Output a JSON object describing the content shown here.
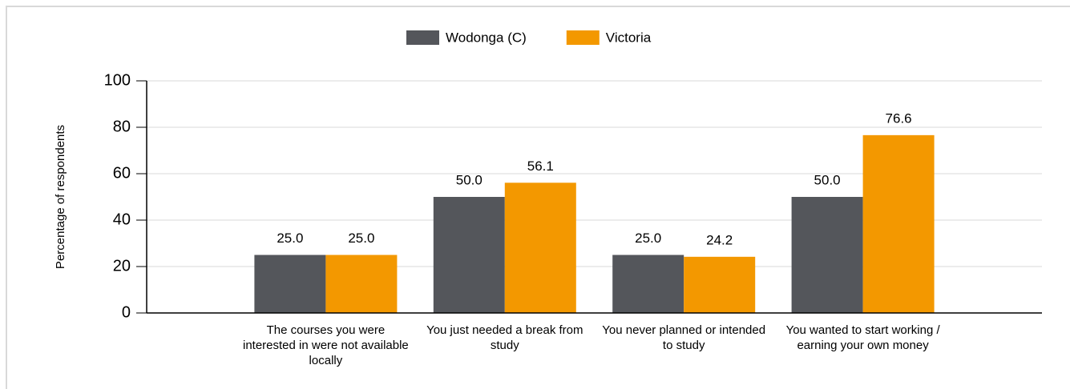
{
  "chart_data": {
    "type": "bar",
    "categories": [
      "The courses you were interested in were not available locally",
      "You just needed a break from study",
      "You never planned or intended to study",
      "You wanted to start working / earning your own money"
    ],
    "series": [
      {
        "name": "Wodonga (C)",
        "color": "#54565b",
        "values": [
          25,
          50,
          25,
          50
        ],
        "value_labels": [
          "25.0",
          "50.0",
          "25.0",
          "50.0"
        ]
      },
      {
        "name": "Victoria",
        "color": "#f39800",
        "values": [
          25,
          56.1,
          24.2,
          76.6
        ],
        "value_labels": [
          "25.0",
          "56.1",
          "24.2",
          "76.6"
        ]
      }
    ],
    "y_label": "Percentage of respondents",
    "ylim": [
      0,
      100
    ],
    "yticks": [
      0,
      20,
      40,
      60,
      80,
      100
    ],
    "grid": true,
    "legend": "top"
  }
}
